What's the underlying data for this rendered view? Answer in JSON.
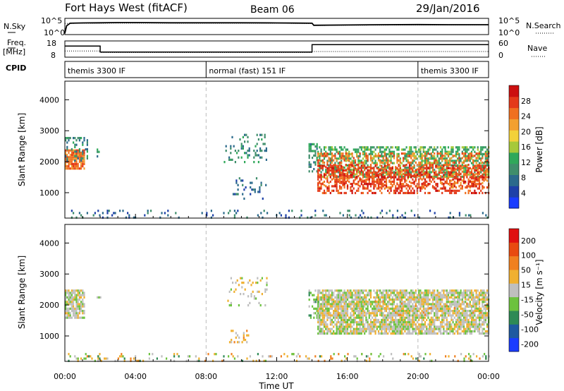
{
  "header": {
    "station": "Fort Hays West (fitACF)",
    "beam": "Beam 06",
    "date": "29/Jan/2016"
  },
  "chart_data": [
    {
      "type": "line",
      "panel": "noise",
      "left_label": "N.Sky",
      "right_label": "N.Search",
      "left_ticks": [
        "10^5",
        "10^0"
      ],
      "right_ticks": [
        "10^5",
        "10^0"
      ],
      "series": [
        {
          "name": "N.Sky",
          "style": "solid",
          "x": [
            0,
            0.1,
            0.3,
            1,
            2,
            3,
            4,
            6,
            8,
            10,
            12,
            13,
            14,
            14.1,
            16,
            18,
            20,
            22,
            24
          ],
          "y": [
            0.05,
            0.55,
            0.72,
            0.74,
            0.75,
            0.76,
            0.76,
            0.75,
            0.75,
            0.75,
            0.74,
            0.73,
            0.72,
            0.58,
            0.6,
            0.62,
            0.63,
            0.62,
            0.62
          ]
        },
        {
          "name": "N.Search",
          "style": "dotted",
          "x": [
            0,
            1,
            4,
            8,
            12,
            14,
            14.1,
            16,
            20,
            24
          ],
          "y": [
            0.7,
            0.72,
            0.73,
            0.72,
            0.72,
            0.7,
            0.56,
            0.58,
            0.6,
            0.6
          ]
        }
      ]
    },
    {
      "type": "line",
      "panel": "freq",
      "left_label": "Freq.",
      "left_unit": "[MHz]",
      "right_label": "Nave",
      "left_ticks": [
        "18",
        "8"
      ],
      "right_ticks": [
        "60",
        "0"
      ],
      "series": [
        {
          "name": "Freq.",
          "style": "solid",
          "x": [
            0,
            2,
            2,
            14,
            14,
            24
          ],
          "y": [
            15,
            15,
            11,
            11,
            16,
            16
          ]
        },
        {
          "name": "Nave",
          "style": "dotted",
          "x": [
            0,
            2,
            2,
            14,
            14,
            24
          ],
          "y": [
            22,
            22,
            16,
            16,
            20,
            20
          ]
        }
      ]
    },
    {
      "type": "table",
      "panel": "cpid",
      "label": "CPID",
      "segments": [
        {
          "start": 0,
          "end": 8,
          "text": "themis 3300 IF"
        },
        {
          "start": 8,
          "end": 20,
          "text": "normal (fast) 151 IF"
        },
        {
          "start": 20,
          "end": 24,
          "text": "themis 3300 IF"
        }
      ]
    },
    {
      "type": "heatmap",
      "panel": "power",
      "ylabel": "Slant Range [km]",
      "yticks": [
        1000,
        2000,
        3000,
        4000
      ],
      "ylim": [
        180,
        4600
      ],
      "colorbar": {
        "label": "Power [dB]",
        "ticks": [
          "4",
          "8",
          "12",
          "16",
          "20",
          "24",
          "28"
        ],
        "colors": [
          "#1a3cff",
          "#1e40a8",
          "#2b6a8c",
          "#3f8e6b",
          "#2fa85a",
          "#a6c93a",
          "#f2d13a",
          "#f2a030",
          "#f07020",
          "#e43a1a",
          "#cc1010"
        ]
      },
      "vlines": [
        8,
        20
      ],
      "regions": [
        {
          "x": [
            0.0,
            1.1
          ],
          "y": [
            1780,
            2400
          ],
          "level": 8,
          "density": 0.9
        },
        {
          "x": [
            0.0,
            1.3
          ],
          "y": [
            2000,
            2800
          ],
          "level": 3,
          "density": 0.35
        },
        {
          "x": [
            1.8,
            2.0
          ],
          "y": [
            2200,
            2500
          ],
          "level": 3,
          "density": 0.25
        },
        {
          "x": [
            9.0,
            11.4
          ],
          "y": [
            2000,
            2900
          ],
          "level": 3,
          "density": 0.18
        },
        {
          "x": [
            9.5,
            11.5
          ],
          "y": [
            800,
            1500
          ],
          "level": 2,
          "density": 0.12
        },
        {
          "x": [
            13.8,
            14.3
          ],
          "y": [
            1700,
            2600
          ],
          "level": 3,
          "density": 0.5
        },
        {
          "x": [
            14.3,
            24
          ],
          "y": [
            1500,
            2500
          ],
          "level": 4,
          "density": 0.55
        },
        {
          "x": [
            14.3,
            24
          ],
          "y": [
            1200,
            2300
          ],
          "level": 8,
          "density": 0.35
        },
        {
          "x": [
            14.3,
            24
          ],
          "y": [
            1000,
            1900
          ],
          "level": 9,
          "density": 0.45
        },
        {
          "x": [
            0,
            24
          ],
          "y": [
            180,
            450
          ],
          "level": 2,
          "density": 0.12
        }
      ]
    },
    {
      "type": "heatmap",
      "panel": "velocity",
      "ylabel": "Slant Range [km]",
      "xlabel": "Time UT",
      "xticks": [
        "00:00",
        "04:00",
        "08:00",
        "12:00",
        "16:00",
        "20:00",
        "00:00"
      ],
      "yticks": [
        1000,
        2000,
        3000,
        4000
      ],
      "ylim": [
        180,
        4600
      ],
      "colorbar": {
        "label": "Velocity [m s⁻¹]",
        "ticks": [
          "200",
          "100",
          "50",
          "15",
          "-15",
          "-50",
          "-100",
          "-200"
        ],
        "colors": [
          "#1a3cff",
          "#1f5aa0",
          "#2e8a55",
          "#6cc23e",
          "#bfbfbf",
          "#f0b030",
          "#f08020",
          "#e84a10",
          "#e01010"
        ]
      },
      "vlines": [
        8,
        20
      ],
      "regions": [
        {
          "x": [
            0.0,
            1.1
          ],
          "y": [
            1600,
            2500
          ],
          "level": 4,
          "density": 0.85
        },
        {
          "x": [
            1.8,
            2.0
          ],
          "y": [
            2200,
            2500
          ],
          "level": 4,
          "density": 0.25
        },
        {
          "x": [
            9.2,
            11.4
          ],
          "y": [
            2000,
            2900
          ],
          "level": 4,
          "density": 0.15
        },
        {
          "x": [
            9.3,
            10.5
          ],
          "y": [
            800,
            1200
          ],
          "level": 5,
          "density": 0.25
        },
        {
          "x": [
            13.8,
            14.4
          ],
          "y": [
            1600,
            2500
          ],
          "level": 3,
          "density": 0.45
        },
        {
          "x": [
            14.3,
            24
          ],
          "y": [
            1100,
            2500
          ],
          "level": 4,
          "density": 0.8
        },
        {
          "x": [
            14.3,
            24
          ],
          "y": [
            1700,
            2300
          ],
          "level": 5,
          "density": 0.08
        },
        {
          "x": [
            0,
            24
          ],
          "y": [
            180,
            450
          ],
          "level": 5,
          "density": 0.1
        },
        {
          "x": [
            0,
            24
          ],
          "y": [
            180,
            450
          ],
          "level": 3,
          "density": 0.06
        }
      ]
    }
  ]
}
